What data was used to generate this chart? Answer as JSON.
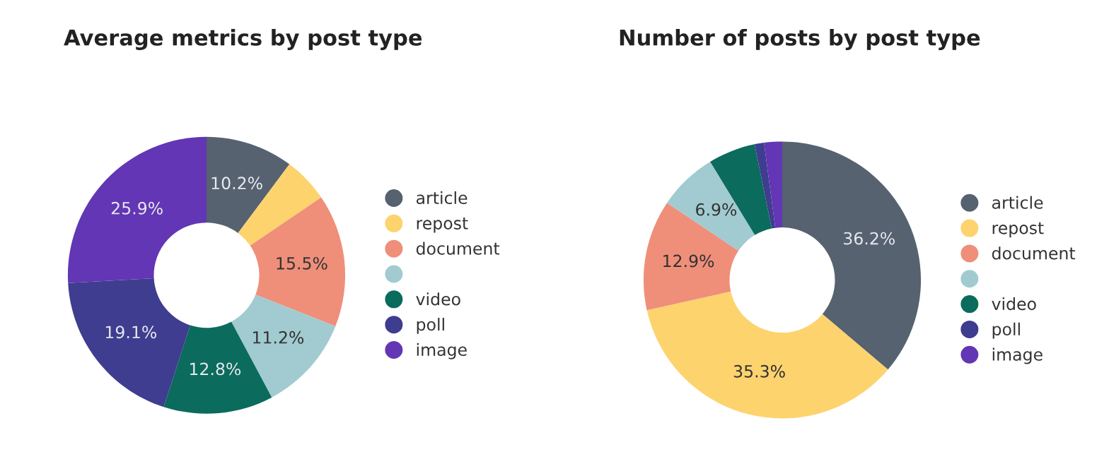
{
  "chart_data": [
    {
      "type": "donut",
      "title": "Average metrics by post type",
      "categories": [
        "article",
        "repost",
        "document",
        null,
        "video",
        "poll",
        "image"
      ],
      "values": [
        10.2,
        5.3,
        15.5,
        11.2,
        12.8,
        19.1,
        25.9
      ],
      "colors": [
        "#566270",
        "#fdd36e",
        "#ef8f7a",
        "#a1cbd0",
        "#0b6b5c",
        "#3f3d8f",
        "#6236b4"
      ],
      "value_labels": [
        "10.2%",
        null,
        "15.5%",
        "11.2%",
        "12.8%",
        "19.1%",
        "25.9%"
      ],
      "legend": "right"
    },
    {
      "type": "donut",
      "title": "Number of posts by post type",
      "categories": [
        "article",
        "repost",
        "document",
        null,
        "video",
        "poll",
        "image"
      ],
      "values": [
        36.2,
        35.3,
        12.9,
        6.9,
        5.5,
        1.1,
        2.1
      ],
      "colors": [
        "#566270",
        "#fdd36e",
        "#ef8f7a",
        "#a1cbd0",
        "#0b6b5c",
        "#3f3d8f",
        "#6236b4"
      ],
      "value_labels": [
        "36.2%",
        "35.3%",
        "12.9%",
        "6.9%",
        null,
        null,
        null
      ],
      "legend": "right"
    }
  ]
}
